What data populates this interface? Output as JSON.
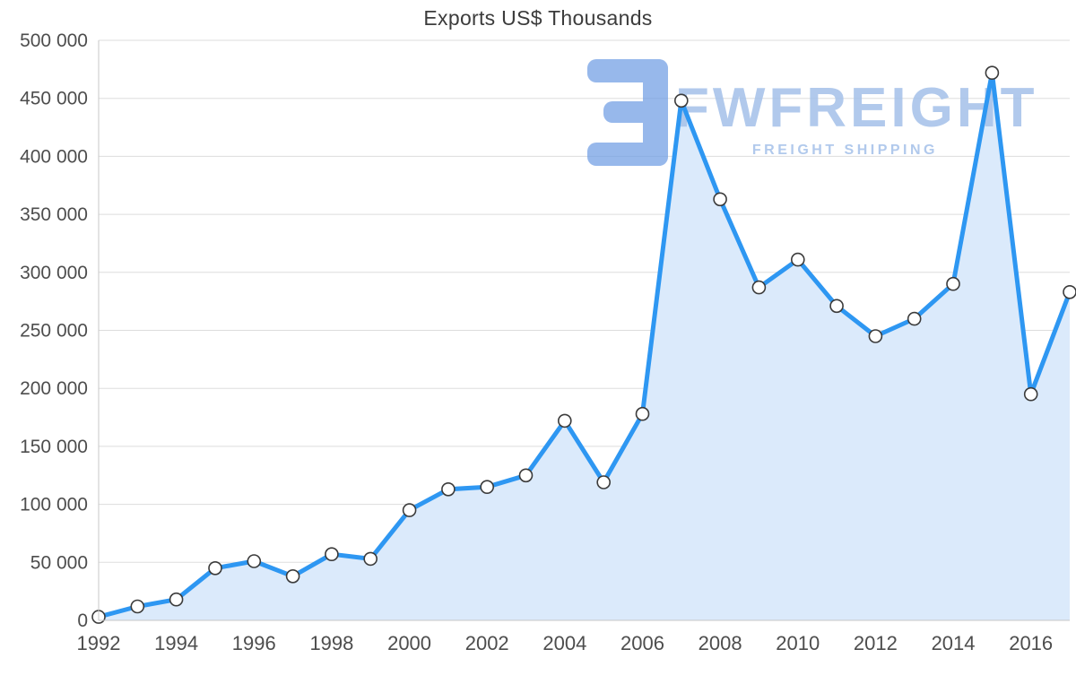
{
  "chart_data": {
    "type": "area",
    "title": "Exports US$ Thousands",
    "x": [
      1992,
      1993,
      1994,
      1995,
      1996,
      1997,
      1998,
      1999,
      2000,
      2001,
      2002,
      2003,
      2004,
      2005,
      2006,
      2007,
      2008,
      2009,
      2010,
      2011,
      2012,
      2013,
      2014,
      2015,
      2016,
      2017
    ],
    "values": [
      3000,
      12000,
      18000,
      45000,
      51000,
      38000,
      57000,
      53000,
      95000,
      113000,
      115000,
      125000,
      172000,
      119000,
      178000,
      448000,
      363000,
      287000,
      311000,
      271000,
      245000,
      260000,
      290000,
      472000,
      195000,
      283000
    ],
    "xlabel": "",
    "ylabel": "",
    "ylim": [
      0,
      500000
    ],
    "yticks": [
      0,
      50000,
      100000,
      150000,
      200000,
      250000,
      300000,
      350000,
      400000,
      450000,
      500000
    ],
    "ytick_labels": [
      "0",
      "50 000",
      "100 000",
      "150 000",
      "200 000",
      "250 000",
      "300 000",
      "350 000",
      "400 000",
      "450 000",
      "500 000"
    ],
    "xticks": [
      1992,
      1994,
      1996,
      1998,
      2000,
      2002,
      2004,
      2006,
      2008,
      2010,
      2012,
      2014,
      2016
    ],
    "grid": true,
    "legend": "none",
    "line_color": "#2e97f2",
    "area_color": "#dbeafb",
    "marker_fill": "#ffffff",
    "marker_stroke": "#3b3b3b",
    "grid_color": "#dddddd",
    "axis_color": "#c7c7c7",
    "axis_text_color": "#4d4d4d"
  },
  "watermark": {
    "brand": "FWFREIGHT",
    "tagline": "FREIGHT SHIPPING",
    "logo_color": "#6f9de4",
    "text_color": "#a9c4ea"
  }
}
